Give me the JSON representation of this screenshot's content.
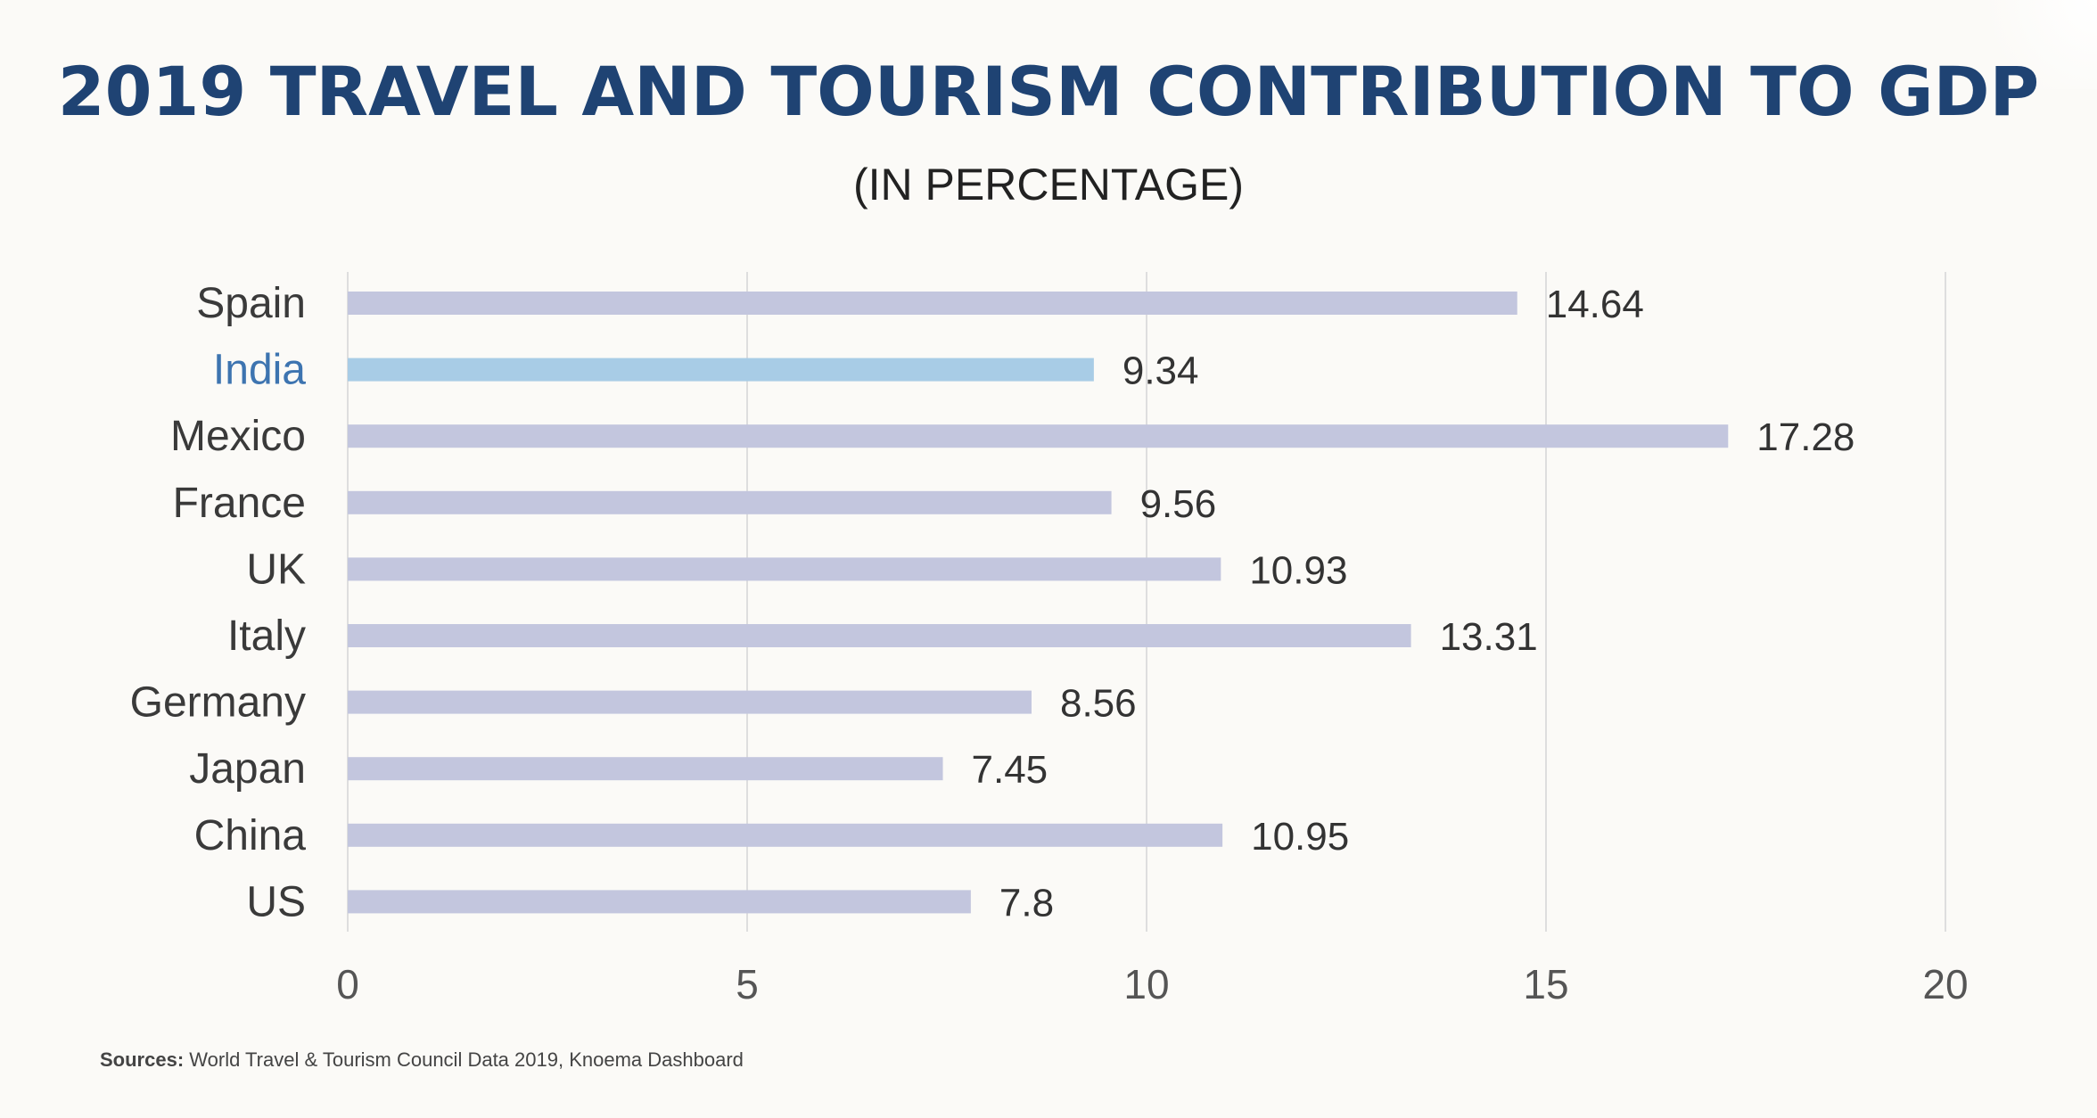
{
  "chart_data": {
    "type": "bar",
    "orientation": "horizontal",
    "title": "2019 TRAVEL AND TOURISM CONTRIBUTION TO GDP",
    "subtitle": "(IN PERCENTAGE)",
    "categories": [
      "Spain",
      "India",
      "Mexico",
      "France",
      "UK",
      "Italy",
      "Germany",
      "Japan",
      "China",
      "US"
    ],
    "values": [
      14.64,
      9.34,
      17.28,
      9.56,
      10.93,
      13.31,
      8.56,
      7.45,
      10.95,
      7.8
    ],
    "value_labels": [
      "14.64",
      "9.34",
      "17.28",
      "9.56",
      "10.93",
      "13.31",
      "8.56",
      "7.45",
      "10.95",
      "7.8"
    ],
    "highlight": "India",
    "xlim": [
      0,
      20
    ],
    "xticks": [
      0,
      5,
      10,
      15,
      20
    ],
    "xlabel": "",
    "ylabel": "",
    "grid": true,
    "colors": {
      "bar": "#c3c6de",
      "highlight_bar": "#a8cce6",
      "highlight_label": "#3d74b0",
      "label": "#3a3a3a",
      "grid": "#dedede",
      "title": "#1f4373"
    }
  },
  "source": {
    "prefix": "Sources:",
    "text": " World Travel & Tourism Council Data 2019, Knoema Dashboard"
  }
}
